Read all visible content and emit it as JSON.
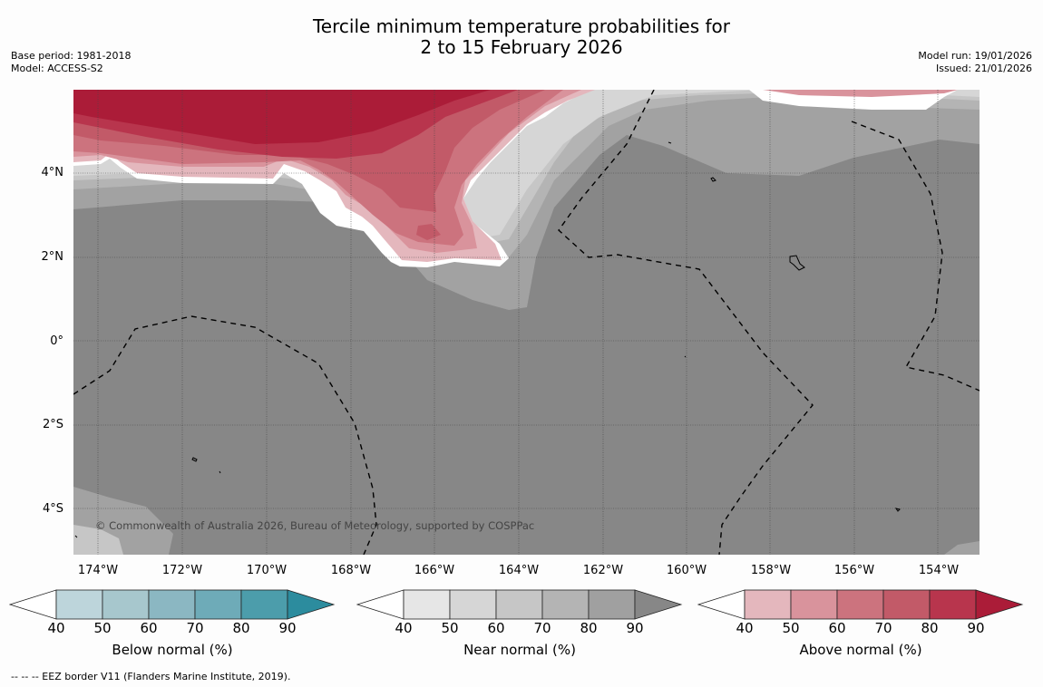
{
  "title": {
    "line1": "Tercile minimum temperature probabilities for",
    "line2": "2 to 15 February 2026"
  },
  "meta": {
    "base_period": "Base period: 1981-2018",
    "model": "Model: ACCESS-S2",
    "model_run": "Model run: 19/01/2026",
    "issued": "Issued: 21/01/2026"
  },
  "axes": {
    "lat_labels": [
      "4°N",
      "2°N",
      "0°",
      "2°S",
      "4°S"
    ],
    "lon_labels": [
      "174°W",
      "172°W",
      "170°W",
      "168°W",
      "166°W",
      "164°W",
      "162°W",
      "160°W",
      "158°W",
      "156°W",
      "154°W"
    ]
  },
  "map": {
    "copyright": "© Commonwealth of Australia 2026, Bureau of Meteorology, supported by COSPPac",
    "base_color": "#878787"
  },
  "colorbars": {
    "ticks": [
      "40",
      "50",
      "60",
      "70",
      "80",
      "90"
    ],
    "below": {
      "label": "Below normal (%)",
      "colors": [
        "#bdd5db",
        "#a7c7cd",
        "#8bb7c2",
        "#6eabb8",
        "#4c9dab",
        "#2c8c9e"
      ]
    },
    "near": {
      "label": "Near normal (%)",
      "colors": [
        "#e6e6e6",
        "#d6d6d6",
        "#c6c6c6",
        "#b4b4b4",
        "#a0a0a0",
        "#878787"
      ]
    },
    "above": {
      "label": "Above normal (%)",
      "colors": [
        "#e4b7bd",
        "#d9939c",
        "#cc737e",
        "#c25a68",
        "#b8354d",
        "#ab1c38"
      ]
    }
  },
  "footnote": "--  --  -- EEZ border V11 (Flanders Marine Institute, 2019)."
}
